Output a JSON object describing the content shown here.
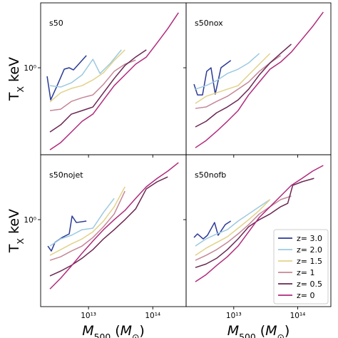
{
  "chart_data": [
    {
      "type": "line",
      "title": "s50",
      "xscale": "log",
      "yscale": "log",
      "xlim": [
        1800000000000.0,
        330000000000000.0
      ],
      "ylim": [
        0.154,
        4.04
      ],
      "xticks": [
        10000000000000.0,
        100000000000000.0
      ],
      "yticks": [
        {
          "value": 1,
          "label": "10⁰"
        }
      ],
      "ylabel": [
        {
          "text": "T",
          "style": "normal"
        },
        {
          "text": "X",
          "style": "sub"
        },
        {
          "text": " keV",
          "style": "normal"
        }
      ],
      "series": [
        {
          "color": "#2b3a96",
          "x": [
            2270000000000.0,
            2580000000000.0,
            3250000000000.0,
            4190000000000.0,
            5010000000000.0,
            5840000000000.0,
            9270000000000.0
          ],
          "values": [
            0.832,
            0.501,
            0.681,
            0.97,
            1.0,
            0.955,
            1.3
          ]
        },
        {
          "color": "#9cc9e0",
          "x": [
            2510000000000.0,
            3690000000000.0,
            5410000000000.0,
            7940000000000.0,
            11700000000000.0,
            15100000000000.0,
            22100000000000.0,
            32500000000000.0
          ],
          "values": [
            0.681,
            0.661,
            0.724,
            0.858,
            1.2,
            0.884,
            1.11,
            1.47
          ]
        },
        {
          "color": "#e2d28a",
          "x": [
            2510000000000.0,
            3690000000000.0,
            5410000000000.0,
            7940000000000.0,
            11700000000000.0,
            17100000000000.0,
            25100000000000.0,
            36900000000000.0
          ],
          "values": [
            0.479,
            0.584,
            0.641,
            0.681,
            0.77,
            0.898,
            1.17,
            1.47
          ]
        },
        {
          "color": "#c58897",
          "x": [
            2510000000000.0,
            3690000000000.0,
            5410000000000.0,
            7940000000000.0,
            11700000000000.0,
            17100000000000.0,
            25100000000000.0,
            36900000000000.0,
            54100000000000.0
          ],
          "values": [
            0.398,
            0.41,
            0.485,
            0.525,
            0.558,
            0.7,
            0.926,
            1.08,
            1.18
          ]
        },
        {
          "color": "#6a2653",
          "x": [
            2510000000000.0,
            3690000000000.0,
            5410000000000.0,
            7940000000000.0,
            11700000000000.0,
            17100000000000.0,
            25100000000000.0,
            36900000000000.0,
            54100000000000.0,
            79400000000000.0
          ],
          "values": [
            0.251,
            0.293,
            0.369,
            0.398,
            0.43,
            0.584,
            0.794,
            1.05,
            1.26,
            1.47
          ]
        },
        {
          "color": "#b02a7c",
          "x": [
            2510000000000.0,
            3690000000000.0,
            5410000000000.0,
            7940000000000.0,
            11700000000000.0,
            17100000000000.0,
            25100000000000.0,
            36900000000000.0,
            54100000000000.0,
            79400000000000.0,
            117000000000000.0,
            171000000000000.0,
            251000000000000.0
          ],
          "values": [
            0.171,
            0.2,
            0.251,
            0.316,
            0.369,
            0.501,
            0.681,
            0.858,
            1.08,
            1.26,
            1.71,
            2.32,
            3.27
          ]
        }
      ]
    },
    {
      "type": "line",
      "title": "s50nox",
      "xscale": "log",
      "yscale": "log",
      "xlim": [
        1800000000000.0,
        330000000000000.0
      ],
      "ylim": [
        0.154,
        4.04
      ],
      "xticks": [
        10000000000000.0,
        100000000000000.0
      ],
      "yticks": [
        1
      ],
      "series": [
        {
          "color": "#2b3a96",
          "x": [
            2390000000000.0,
            2710000000000.0,
            3250000000000.0,
            3780000000000.0,
            4410000000000.0,
            5140000000000.0,
            6310000000000.0,
            9000000000000.0
          ],
          "values": [
            0.703,
            0.558,
            0.558,
            0.926,
            1.0,
            0.567,
            1.0,
            1.17
          ]
        },
        {
          "color": "#9cc9e0",
          "x": [
            2510000000000.0,
            3690000000000.0,
            5410000000000.0,
            7940000000000.0,
            11700000000000.0,
            17100000000000.0,
            25100000000000.0
          ],
          "values": [
            0.631,
            0.681,
            0.759,
            0.884,
            0.97,
            1.11,
            1.36
          ]
        },
        {
          "color": "#e2d28a",
          "x": [
            2510000000000.0,
            3690000000000.0,
            5410000000000.0,
            7940000000000.0,
            11700000000000.0,
            17100000000000.0,
            25100000000000.0,
            36900000000000.0
          ],
          "values": [
            0.464,
            0.541,
            0.584,
            0.631,
            0.681,
            0.858,
            1.08,
            1.36
          ]
        },
        {
          "color": "#c58897",
          "x": [
            2510000000000.0,
            3690000000000.0,
            5410000000000.0,
            7940000000000.0,
            11700000000000.0,
            17100000000000.0,
            25100000000000.0,
            36900000000000.0,
            54100000000000.0
          ],
          "values": [
            0.417,
            0.43,
            0.485,
            0.541,
            0.631,
            0.736,
            0.926,
            1.11,
            1.3
          ]
        },
        {
          "color": "#6a2653",
          "x": [
            2510000000000.0,
            3690000000000.0,
            5410000000000.0,
            7940000000000.0,
            11700000000000.0,
            17100000000000.0,
            25100000000000.0,
            36900000000000.0,
            54100000000000.0,
            79400000000000.0
          ],
          "values": [
            0.28,
            0.316,
            0.38,
            0.43,
            0.501,
            0.631,
            0.858,
            1.11,
            1.36,
            1.66
          ]
        },
        {
          "color": "#b02a7c",
          "x": [
            2510000000000.0,
            3690000000000.0,
            5410000000000.0,
            7940000000000.0,
            11700000000000.0,
            17100000000000.0,
            25100000000000.0,
            36900000000000.0,
            54100000000000.0,
            79400000000000.0,
            117000000000000.0,
            171000000000000.0,
            251000000000000.0
          ],
          "values": [
            0.179,
            0.209,
            0.255,
            0.316,
            0.398,
            0.558,
            0.736,
            0.97,
            1.13,
            1.4,
            1.85,
            2.43,
            3.31
          ]
        }
      ]
    },
    {
      "type": "line",
      "title": "s50nojet",
      "xscale": "log",
      "yscale": "log",
      "xlim": [
        1800000000000.0,
        330000000000000.0
      ],
      "ylim": [
        0.154,
        4.04
      ],
      "xticks": [
        {
          "value": 10000000000000.0,
          "label": "10¹³"
        },
        {
          "value": 100000000000000.0,
          "label": "10¹⁴"
        }
      ],
      "yticks": [
        {
          "value": 1,
          "label": "10⁰"
        }
      ],
      "xlabel": [
        {
          "text": "M",
          "style": "italic"
        },
        {
          "text": "500",
          "style": "sub"
        },
        {
          "text": " (",
          "style": "normal"
        },
        {
          "text": "M",
          "style": "italic"
        },
        {
          "text": "⊙",
          "style": "sub"
        },
        {
          "text": ")",
          "style": "normal"
        }
      ],
      "ylabel": [
        {
          "text": "T",
          "style": "normal"
        },
        {
          "text": "X",
          "style": "sub"
        },
        {
          "text": " keV",
          "style": "normal"
        }
      ],
      "series": [
        {
          "color": "#2b3a96",
          "x": [
            2330000000000.0,
            2640000000000.0,
            3000000000000.0,
            3880000000000.0,
            5010000000000.0,
            5550000000000.0,
            6470000000000.0,
            9270000000000.0
          ],
          "values": [
            0.567,
            0.509,
            0.612,
            0.681,
            0.736,
            1.08,
            0.94,
            0.97
          ]
        },
        {
          "color": "#9cc9e0",
          "x": [
            2510000000000.0,
            3690000000000.0,
            5410000000000.0,
            7940000000000.0,
            11700000000000.0,
            17100000000000.0,
            25100000000000.0
          ],
          "values": [
            0.567,
            0.661,
            0.714,
            0.806,
            0.832,
            1.17,
            1.58
          ]
        },
        {
          "color": "#e2d28a",
          "x": [
            2510000000000.0,
            3690000000000.0,
            5410000000000.0,
            7940000000000.0,
            11700000000000.0,
            17100000000000.0,
            25100000000000.0,
            36900000000000.0
          ],
          "values": [
            0.464,
            0.525,
            0.593,
            0.661,
            0.77,
            0.97,
            1.32,
            2.03
          ]
        },
        {
          "color": "#c58897",
          "x": [
            2510000000000.0,
            3690000000000.0,
            5410000000000.0,
            7940000000000.0,
            11700000000000.0,
            17100000000000.0,
            25100000000000.0,
            36900000000000.0
          ],
          "values": [
            0.417,
            0.45,
            0.509,
            0.567,
            0.681,
            0.858,
            1.13,
            1.85
          ]
        },
        {
          "color": "#6a2653",
          "x": [
            2510000000000.0,
            3690000000000.0,
            5410000000000.0,
            7940000000000.0,
            11700000000000.0,
            17100000000000.0,
            25100000000000.0,
            36900000000000.0,
            54100000000000.0,
            79400000000000.0,
            117000000000000.0,
            171000000000000.0
          ],
          "values": [
            0.298,
            0.331,
            0.374,
            0.436,
            0.525,
            0.661,
            0.806,
            1.0,
            1.26,
            1.94,
            2.26,
            2.51
          ]
        },
        {
          "color": "#b02a7c",
          "x": [
            2510000000000.0,
            3690000000000.0,
            5410000000000.0,
            7940000000000.0,
            11700000000000.0,
            17100000000000.0,
            25100000000000.0,
            36900000000000.0,
            54100000000000.0,
            79400000000000.0,
            117000000000000.0,
            171000000000000.0,
            251000000000000.0
          ],
          "values": [
            0.225,
            0.284,
            0.369,
            0.486,
            0.631,
            0.806,
            1.0,
            1.22,
            1.58,
            2.03,
            2.43,
            2.84,
            3.41
          ]
        }
      ]
    },
    {
      "type": "line",
      "title": "s50nofb",
      "xscale": "log",
      "yscale": "log",
      "xlim": [
        1800000000000.0,
        330000000000000.0
      ],
      "ylim": [
        0.154,
        4.04
      ],
      "xticks": [
        {
          "value": 10000000000000.0,
          "label": "10¹³"
        },
        {
          "value": 100000000000000.0,
          "label": "10¹⁴"
        }
      ],
      "yticks": [
        1
      ],
      "xlabel": [
        {
          "text": "M",
          "style": "italic"
        },
        {
          "text": "500",
          "style": "sub"
        },
        {
          "text": " (",
          "style": "normal"
        },
        {
          "text": "M",
          "style": "italic"
        },
        {
          "text": "⊙",
          "style": "sub"
        },
        {
          "text": ")",
          "style": "normal"
        }
      ],
      "legend": "lower right",
      "series": [
        {
          "name": "z= 3.0",
          "color": "#2b3a96",
          "x": [
            2390000000000.0,
            2710000000000.0,
            3330000000000.0,
            3880000000000.0,
            5010000000000.0,
            5700000000000.0,
            7360000000000.0,
            9000000000000.0
          ],
          "values": [
            0.681,
            0.736,
            0.661,
            0.714,
            0.94,
            0.714,
            0.898,
            0.97
          ]
        },
        {
          "name": "z= 2.0",
          "color": "#9cc9e0",
          "x": [
            2510000000000.0,
            3690000000000.0,
            5410000000000.0,
            7940000000000.0,
            11700000000000.0,
            17100000000000.0,
            25100000000000.0,
            36900000000000.0
          ],
          "values": [
            0.567,
            0.661,
            0.736,
            0.806,
            0.97,
            1.13,
            1.32,
            1.54
          ]
        },
        {
          "name": "z= 1.5",
          "color": "#e2d28a",
          "x": [
            2510000000000.0,
            3690000000000.0,
            5410000000000.0,
            7940000000000.0,
            11700000000000.0,
            17100000000000.0,
            25100000000000.0,
            36900000000000.0
          ],
          "values": [
            0.464,
            0.541,
            0.612,
            0.692,
            0.832,
            1.0,
            1.22,
            1.54
          ]
        },
        {
          "name": "z= 1",
          "color": "#c58897",
          "x": [
            2510000000000.0,
            3690000000000.0,
            5410000000000.0,
            7940000000000.0,
            11700000000000.0,
            17100000000000.0,
            25100000000000.0,
            36900000000000.0,
            54100000000000.0,
            79400000000000.0
          ],
          "values": [
            0.417,
            0.464,
            0.525,
            0.612,
            0.736,
            0.898,
            1.13,
            1.32,
            1.54,
            1.66
          ]
        },
        {
          "name": "z= 0.5",
          "color": "#6a2653",
          "x": [
            2510000000000.0,
            3690000000000.0,
            5410000000000.0,
            7940000000000.0,
            11700000000000.0,
            17100000000000.0,
            25100000000000.0,
            36900000000000.0,
            54100000000000.0,
            69800000000000.0,
            83600000000000.0,
            117000000000000.0,
            180000000000000.0
          ],
          "values": [
            0.357,
            0.385,
            0.436,
            0.525,
            0.661,
            0.858,
            1.0,
            1.13,
            1.32,
            1.42,
            2.09,
            2.26,
            2.43
          ]
        },
        {
          "name": "z= 0",
          "color": "#b02a7c",
          "x": [
            2510000000000.0,
            3690000000000.0,
            5410000000000.0,
            7940000000000.0,
            11700000000000.0,
            17100000000000.0,
            25100000000000.0,
            36900000000000.0,
            54100000000000.0,
            79400000000000.0,
            117000000000000.0,
            171000000000000.0,
            251000000000000.0
          ],
          "values": [
            0.263,
            0.306,
            0.374,
            0.45,
            0.567,
            0.77,
            1.05,
            1.32,
            1.66,
            2.09,
            2.43,
            2.84,
            3.21
          ]
        }
      ]
    }
  ]
}
